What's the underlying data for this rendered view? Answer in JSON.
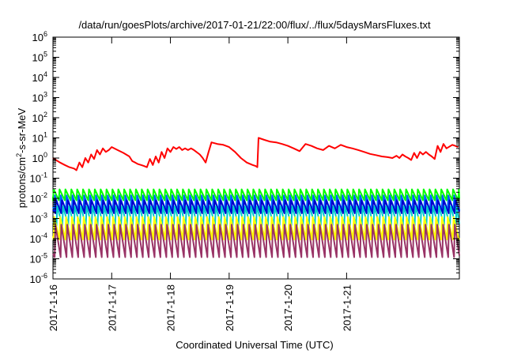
{
  "chart_data": {
    "type": "line",
    "title": "/data/run/goesPlots/archive/2017-01-21/22:00/flux/../flux/5daysMarsFluxes.txt",
    "xlabel": "Coordinated Universal Time (UTC)",
    "ylabel": "protons/cm²-s-sr-MeV",
    "ylabel_parts": {
      "pre": "protons/cm",
      "sup": "2",
      "post": "-s-sr-MeV"
    },
    "yscale": "log",
    "ylim": [
      1e-06,
      1000000.0
    ],
    "xlim": [
      0,
      6.92
    ],
    "y_ticks": [
      {
        "base": "10",
        "exp": "-6",
        "value": -6
      },
      {
        "base": "10",
        "exp": "-5",
        "value": -5
      },
      {
        "base": "10",
        "exp": "-4",
        "value": -4
      },
      {
        "base": "10",
        "exp": "-3",
        "value": -3
      },
      {
        "base": "10",
        "exp": "-2",
        "value": -2
      },
      {
        "base": "10",
        "exp": "-1",
        "value": -1
      },
      {
        "base": "10",
        "exp": "0",
        "value": 0
      },
      {
        "base": "10",
        "exp": "1",
        "value": 1
      },
      {
        "base": "10",
        "exp": "2",
        "value": 2
      },
      {
        "base": "10",
        "exp": "3",
        "value": 3
      },
      {
        "base": "10",
        "exp": "4",
        "value": 4
      },
      {
        "base": "10",
        "exp": "5",
        "value": 5
      },
      {
        "base": "10",
        "exp": "6",
        "value": 6
      }
    ],
    "x_ticks": [
      {
        "label": "2017-1-16",
        "day": 0
      },
      {
        "label": "2017-1-17",
        "day": 1
      },
      {
        "label": "2017-1-18",
        "day": 2
      },
      {
        "label": "2017-1-19",
        "day": 3
      },
      {
        "label": "2017-1-20",
        "day": 4
      },
      {
        "label": "2017-1-21",
        "day": 5
      }
    ],
    "grid": false,
    "legend": "none",
    "series": [
      {
        "color": "#ff0000",
        "x": [
          0.0,
          0.05,
          0.12,
          0.2,
          0.28,
          0.36,
          0.4,
          0.45,
          0.5,
          0.55,
          0.6,
          0.65,
          0.7,
          0.75,
          0.8,
          0.85,
          0.9,
          0.95,
          1.0,
          1.1,
          1.2,
          1.3,
          1.35,
          1.4,
          1.45,
          1.5,
          1.55,
          1.6,
          1.65,
          1.7,
          1.75,
          1.8,
          1.85,
          1.9,
          1.95,
          2.0,
          2.05,
          2.1,
          2.15,
          2.2,
          2.25,
          2.3,
          2.35,
          2.4,
          2.5,
          2.55,
          2.6,
          2.65,
          2.7,
          2.8,
          2.9,
          3.0,
          3.1,
          3.2,
          3.3,
          3.4,
          3.45,
          3.48,
          3.5,
          3.6,
          3.7,
          3.8,
          3.9,
          4.0,
          4.1,
          4.2,
          4.3,
          4.4,
          4.5,
          4.6,
          4.7,
          4.8,
          4.9,
          5.0,
          5.1,
          5.2,
          5.3,
          5.4,
          5.5,
          5.6,
          5.7,
          5.78,
          5.85,
          5.9,
          5.95,
          6.0,
          6.05,
          6.1,
          6.15,
          6.2,
          6.25,
          6.3,
          6.35,
          6.4,
          6.45,
          6.5,
          6.55,
          6.6,
          6.65,
          6.7,
          6.8,
          6.85,
          6.9
        ],
        "y": [
          1.0,
          0.8,
          0.6,
          0.45,
          0.35,
          0.3,
          0.25,
          0.6,
          0.35,
          1.0,
          0.6,
          1.5,
          0.9,
          2.5,
          1.5,
          3.0,
          2.0,
          2.5,
          3.5,
          2.5,
          1.8,
          1.2,
          0.7,
          0.6,
          0.5,
          0.45,
          0.4,
          0.35,
          0.9,
          0.45,
          1.2,
          0.6,
          2.0,
          1.0,
          3.0,
          2.0,
          3.5,
          2.8,
          3.5,
          2.5,
          3.0,
          2.5,
          3.0,
          2.5,
          1.5,
          1.0,
          0.6,
          2.0,
          6.0,
          5.0,
          4.5,
          3.5,
          2.0,
          1.0,
          0.6,
          0.45,
          0.4,
          0.35,
          10.0,
          8.0,
          6.5,
          6.0,
          5.0,
          4.0,
          3.0,
          2.2,
          5.0,
          4.0,
          3.0,
          2.5,
          4.0,
          3.0,
          4.5,
          3.5,
          3.0,
          2.5,
          2.0,
          1.6,
          1.4,
          1.2,
          1.1,
          1.0,
          1.3,
          1.0,
          1.5,
          1.2,
          1.0,
          0.8,
          1.8,
          1.0,
          2.0,
          1.5,
          2.0,
          1.5,
          1.2,
          0.9,
          4.0,
          2.0,
          5.0,
          3.0,
          4.5,
          4.0,
          3.5
        ]
      },
      {
        "color": "#00ff00",
        "sawtooth": {
          "period": 0.1,
          "phase": 0.0,
          "low": 0.008,
          "high": 0.028
        }
      },
      {
        "color": "#0066ff",
        "sawtooth": {
          "period": 0.1,
          "phase": 0.02,
          "low": 0.0025,
          "high": 0.014
        }
      },
      {
        "color": "#0000cc",
        "sawtooth": {
          "period": 0.1,
          "phase": 0.04,
          "low": 0.0018,
          "high": 0.008
        }
      },
      {
        "color": "#00cccc",
        "sawtooth": {
          "period": 0.1,
          "phase": 0.06,
          "low": 0.00045,
          "high": 0.004
        }
      },
      {
        "color": "#ffff00",
        "sawtooth": {
          "period": 0.1,
          "phase": 0.01,
          "low": 9e-05,
          "high": 0.0012
        }
      },
      {
        "color": "#993366",
        "sawtooth": {
          "period": 0.1,
          "phase": 0.03,
          "low": 1.2e-05,
          "high": 0.0005
        }
      }
    ]
  }
}
